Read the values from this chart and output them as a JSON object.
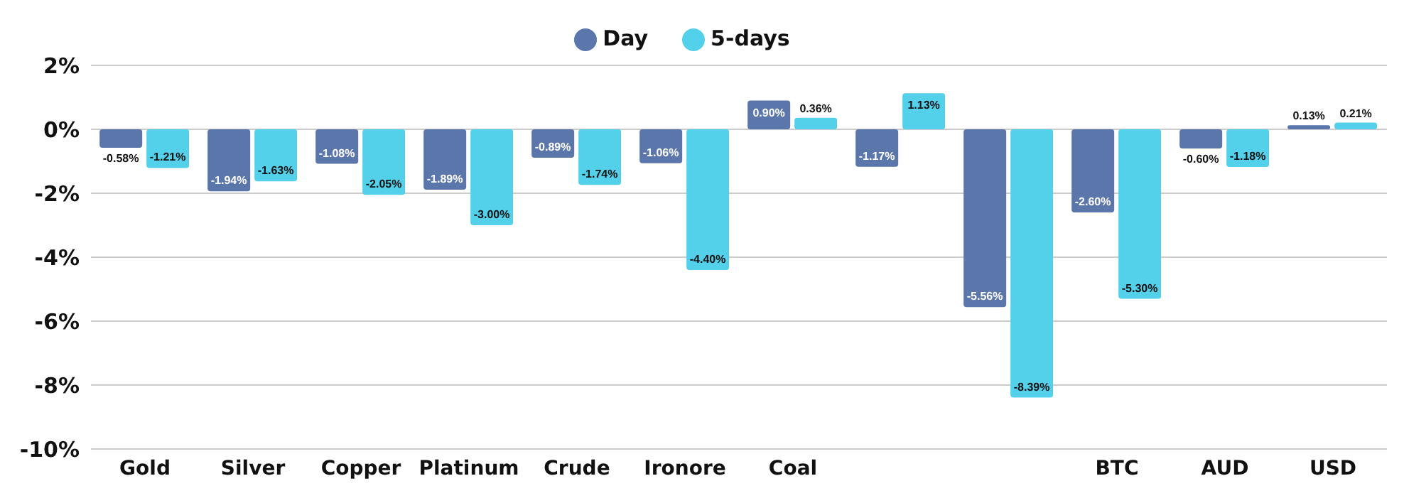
{
  "chart_data": {
    "type": "bar",
    "categories": [
      "Gold",
      "Silver",
      "Copper",
      "Platinum",
      "Crude",
      "Ironore",
      "Coal",
      null,
      null,
      "BTC",
      "AUD",
      "USD"
    ],
    "series": [
      {
        "name": "Day",
        "color": "#5a76aa",
        "values": [
          -0.58,
          -1.94,
          -1.08,
          -1.89,
          -0.89,
          -1.06,
          0.9,
          -1.17,
          -5.56,
          -2.6,
          -0.6,
          0.13
        ],
        "value_labels": [
          "-0.58%",
          "-1.94%",
          "-1.08%",
          "-1.89%",
          "-0.89%",
          "-1.06%",
          "0.90%",
          "-1.17%",
          "-5.56%",
          "-2.60%",
          "-0.60%",
          "0.13%"
        ]
      },
      {
        "name": "5-days",
        "color": "#53d0ea",
        "values": [
          -1.21,
          -1.63,
          -2.05,
          -3.0,
          -1.74,
          -4.4,
          0.36,
          1.13,
          -8.39,
          -5.3,
          -1.18,
          0.21
        ],
        "value_labels": [
          "-1.21%",
          "-1.63%",
          "-2.05%",
          "-3.00%",
          "-1.74%",
          "-4.40%",
          "0.36%",
          "1.13%",
          "-8.39%",
          "-5.30%",
          "-1.18%",
          "0.21%"
        ]
      }
    ],
    "ylim": [
      -10,
      2
    ],
    "yticks": [
      {
        "value": -10,
        "label": "-10%"
      },
      {
        "value": -8,
        "label": "-8%"
      },
      {
        "value": -6,
        "label": "-6%"
      },
      {
        "value": -4,
        "label": "-4%"
      },
      {
        "value": -2,
        "label": "-2%"
      },
      {
        "value": 0,
        "label": "0%"
      },
      {
        "value": 2,
        "label": "2%"
      }
    ],
    "grid": "y",
    "legend": "top"
  }
}
